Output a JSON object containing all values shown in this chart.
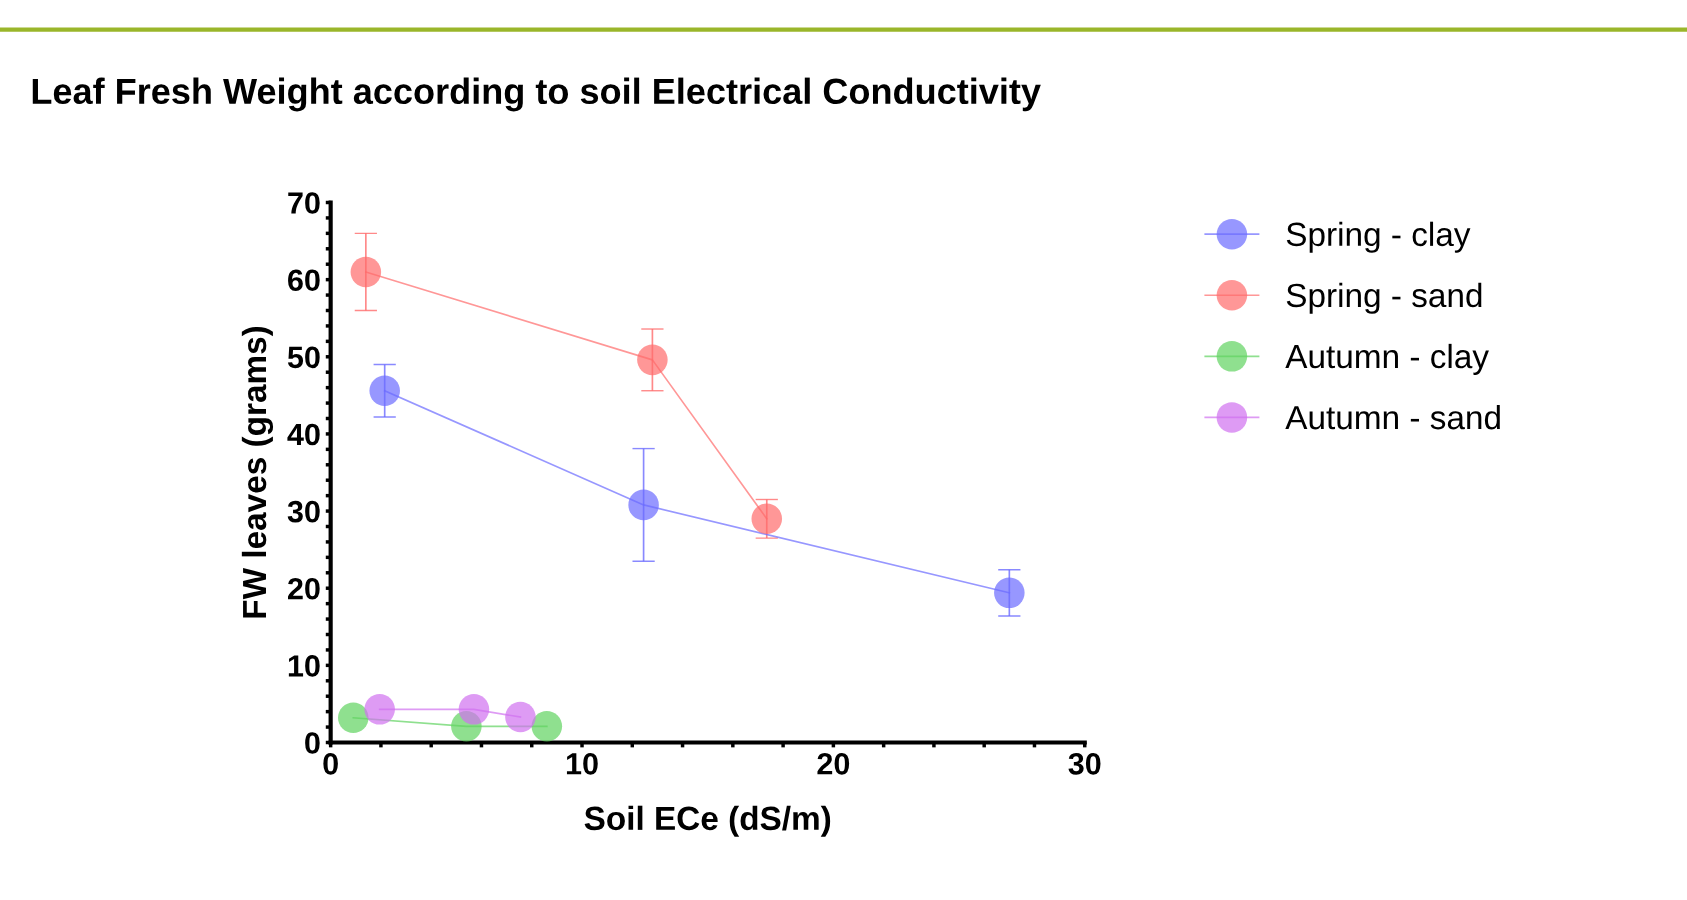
{
  "chart_data": {
    "type": "line",
    "title": "Leaf Fresh Weight according to soil Electrical Conductivity",
    "xlabel": "Soil ECe (dS/m)",
    "ylabel": "FW leaves (grams)",
    "xlim": [
      0,
      30
    ],
    "ylim": [
      0,
      70
    ],
    "xticks": [
      0,
      {
        "value": 2,
        "label": null
      },
      {
        "value": 4,
        "label": null
      },
      {
        "value": 6,
        "label": null
      },
      {
        "value": 8,
        "label": null
      },
      10,
      {
        "value": 12,
        "label": null
      },
      {
        "value": 14,
        "label": null
      },
      {
        "value": 16,
        "label": null
      },
      {
        "value": 18,
        "label": null
      },
      20,
      {
        "value": 22,
        "label": null
      },
      {
        "value": 24,
        "label": null
      },
      {
        "value": 26,
        "label": null
      },
      {
        "value": 28,
        "label": null
      },
      30
    ],
    "yticks": [
      0,
      {
        "value": 2,
        "label": null
      },
      {
        "value": 4,
        "label": null
      },
      {
        "value": 6,
        "label": null
      },
      {
        "value": 8,
        "label": null
      },
      10,
      {
        "value": 12,
        "label": null
      },
      {
        "value": 14,
        "label": null
      },
      {
        "value": 16,
        "label": null
      },
      {
        "value": 18,
        "label": null
      },
      20,
      {
        "value": 22,
        "label": null
      },
      {
        "value": 24,
        "label": null
      },
      {
        "value": 26,
        "label": null
      },
      {
        "value": 28,
        "label": null
      },
      30,
      {
        "value": 32,
        "label": null
      },
      {
        "value": 34,
        "label": null
      },
      {
        "value": 36,
        "label": null
      },
      {
        "value": 38,
        "label": null
      },
      40,
      {
        "value": 42,
        "label": null
      },
      {
        "value": 44,
        "label": null
      },
      {
        "value": 46,
        "label": null
      },
      {
        "value": 48,
        "label": null
      },
      50,
      {
        "value": 52,
        "label": null
      },
      {
        "value": 54,
        "label": null
      },
      {
        "value": 56,
        "label": null
      },
      {
        "value": 58,
        "label": null
      },
      60,
      {
        "value": 62,
        "label": null
      },
      {
        "value": 64,
        "label": null
      },
      {
        "value": 66,
        "label": null
      },
      {
        "value": 68,
        "label": null
      },
      70
    ],
    "marker": "circle",
    "grid": false,
    "legend": "top right",
    "series": [
      {
        "name": "Spring - clay",
        "color": "#6b6bff",
        "x": [
          2.15,
          12.45,
          27.0
        ],
        "values": [
          45.6,
          30.8,
          19.4
        ],
        "errors": [
          3.4,
          7.3,
          3
        ]
      },
      {
        "name": "Spring - sand",
        "color": "#ff6b6b",
        "x": [
          1.4,
          12.8,
          17.35
        ],
        "values": [
          61.0,
          49.6,
          29.0
        ],
        "errors": [
          5,
          4,
          2.5
        ]
      },
      {
        "name": "Autumn - clay",
        "color": "#5fd35f",
        "x": [
          0.9,
          5.4,
          8.6
        ],
        "values": [
          3.2,
          2.1,
          2.1
        ]
      },
      {
        "name": "Autumn - sand",
        "color": "#d070f0",
        "x": [
          1.95,
          5.7,
          7.55
        ],
        "values": [
          4.3,
          4.3,
          3.3
        ]
      }
    ]
  }
}
